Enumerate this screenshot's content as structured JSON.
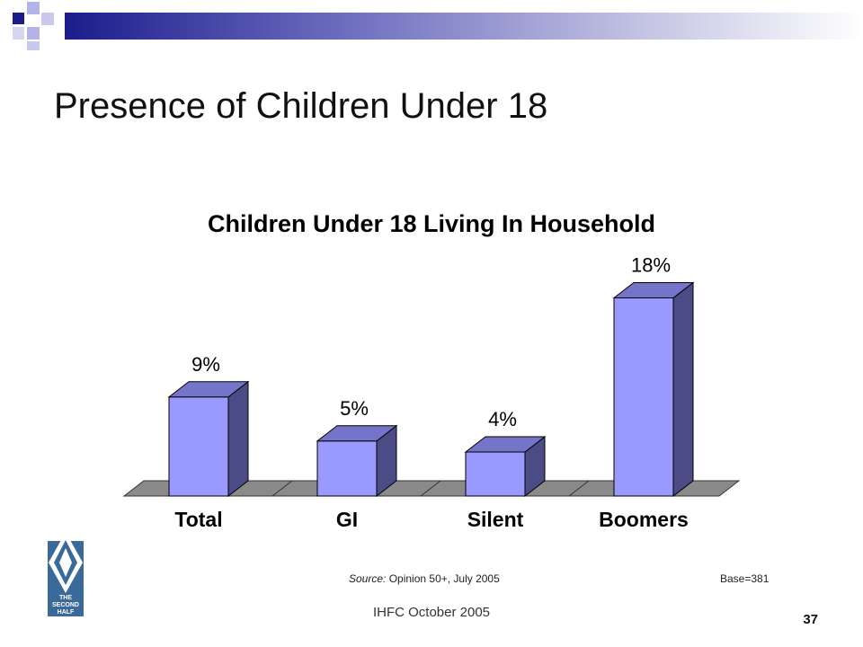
{
  "slide": {
    "title": "Presence of Children Under 18",
    "footer": "IHFC October 2005",
    "page_number": "37",
    "source_label": "Source:",
    "source_text": " Opinion 50+, July 2005",
    "base": "Base=381",
    "logo": {
      "icon": "the-second-half-logo-icon",
      "lines": [
        "THE",
        "SECOND",
        "HALF"
      ]
    }
  },
  "colors": {
    "bar_front": "#9999ff",
    "bar_side": "#4b4b85",
    "bar_top": "#7474c8",
    "floor": "#8a8a8a",
    "deco_navy": "#1c1c8c",
    "deco_lavender": "#b3b3e6"
  },
  "chart_data": {
    "type": "bar",
    "title": "Children Under 18 Living In Household",
    "categories": [
      "Total",
      "GI",
      "Silent",
      "Boomers"
    ],
    "values": [
      9,
      5,
      4,
      18
    ],
    "value_labels": [
      "9%",
      "5%",
      "4%",
      "18%"
    ],
    "ylim": [
      0,
      20
    ],
    "grid": false,
    "legend": "none",
    "style": "3d"
  }
}
